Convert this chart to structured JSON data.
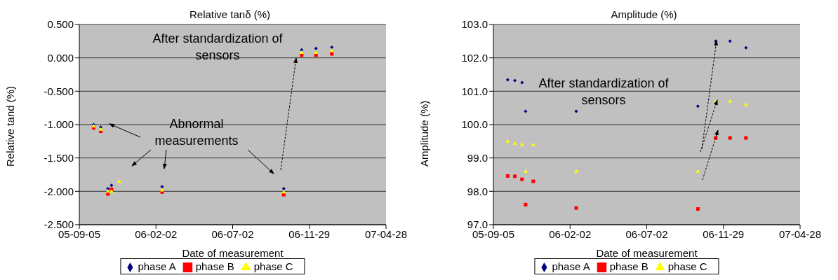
{
  "chart_data": [
    {
      "type": "scatter",
      "title": "Relative tanδ (%)",
      "xlabel": "Date of measurement",
      "ylabel": "Relative tand (%)",
      "x": [
        "2005-10-03",
        "2005-10-17",
        "2005-10-31",
        "2005-11-07",
        "2005-11-22",
        "2006-02-14",
        "2006-10-10",
        "2006-11-14",
        "2006-12-12",
        "2007-01-12"
      ],
      "series": [
        {
          "name": "phase A",
          "color": "#000080",
          "marker": "diamond",
          "values": [
            -1.0,
            -1.04,
            -1.96,
            -1.91,
            null,
            -1.93,
            -1.96,
            0.12,
            0.14,
            0.16
          ]
        },
        {
          "name": "phase B",
          "color": "#ff0000",
          "marker": "square",
          "values": [
            -1.05,
            -1.1,
            -2.04,
            -1.97,
            null,
            -2.01,
            -2.05,
            0.04,
            0.04,
            0.06
          ]
        },
        {
          "name": "phase C",
          "color": "#ffff00",
          "marker": "triangle",
          "values": [
            -1.02,
            -1.07,
            -2.0,
            -2.0,
            -1.85,
            -1.98,
            -2.01,
            0.08,
            0.08,
            0.11
          ]
        }
      ],
      "xlim": [
        "2005-09-05",
        "2007-04-28"
      ],
      "xticks": [
        {
          "value": "2005-09-05",
          "label": "05-09-05"
        },
        {
          "value": "2006-02-02",
          "label": "06-02-02"
        },
        {
          "value": "2006-07-02",
          "label": "06-07-02"
        },
        {
          "value": "2006-11-29",
          "label": "06-11-29"
        },
        {
          "value": "2007-04-28",
          "label": "07-04-28"
        }
      ],
      "ylim": [
        -2.5,
        0.5
      ],
      "yticks": [
        {
          "value": -2.5,
          "label": "-2.500"
        },
        {
          "value": -2.0,
          "label": "-2.000"
        },
        {
          "value": -1.5,
          "label": "-1.500"
        },
        {
          "value": -1.0,
          "label": "-1.000"
        },
        {
          "value": -0.5,
          "label": "-0.500"
        },
        {
          "value": 0.0,
          "label": "0.000"
        },
        {
          "value": 0.5,
          "label": "0.500"
        }
      ],
      "grid": "y",
      "legend": "bottom",
      "annotations": [
        "After standardization of sensors",
        "Abnormal measurements"
      ]
    },
    {
      "type": "scatter",
      "title": "Amplitude (%)",
      "xlabel": "Date of measurement",
      "ylabel": "Amplitude (%)",
      "x": [
        "2005-10-03",
        "2005-10-17",
        "2005-10-31",
        "2005-11-07",
        "2005-11-22",
        "2006-02-14",
        "2006-10-10",
        "2006-11-14",
        "2006-12-12",
        "2007-01-12"
      ],
      "series": [
        {
          "name": "phase A",
          "color": "#000080",
          "marker": "diamond",
          "values": [
            101.34,
            101.32,
            101.26,
            100.4,
            null,
            100.4,
            100.55,
            102.5,
            102.5,
            102.3
          ]
        },
        {
          "name": "phase B",
          "color": "#ff0000",
          "marker": "square",
          "values": [
            98.46,
            98.45,
            98.36,
            97.6,
            98.3,
            97.5,
            97.47,
            99.6,
            99.6,
            99.6
          ]
        },
        {
          "name": "phase C",
          "color": "#ffff00",
          "marker": "triangle",
          "values": [
            99.5,
            99.44,
            99.4,
            98.6,
            99.4,
            98.6,
            98.6,
            100.69,
            100.7,
            100.6
          ]
        }
      ],
      "xlim": [
        "2005-09-05",
        "2007-04-28"
      ],
      "xticks": [
        {
          "value": "2005-09-05",
          "label": "05-09-05"
        },
        {
          "value": "2006-02-02",
          "label": "06-02-02"
        },
        {
          "value": "2006-07-02",
          "label": "06-07-02"
        },
        {
          "value": "2006-11-29",
          "label": "06-11-29"
        },
        {
          "value": "2007-04-28",
          "label": "07-04-28"
        }
      ],
      "ylim": [
        97.0,
        103.0
      ],
      "yticks": [
        {
          "value": 97.0,
          "label": "97.0"
        },
        {
          "value": 98.0,
          "label": "98.0"
        },
        {
          "value": 99.0,
          "label": "99.0"
        },
        {
          "value": 100.0,
          "label": "100.0"
        },
        {
          "value": 101.0,
          "label": "101.0"
        },
        {
          "value": 102.0,
          "label": "102.0"
        },
        {
          "value": 103.0,
          "label": "103.0"
        }
      ],
      "grid": "y",
      "legend": "bottom",
      "annotations": [
        "After standardization of sensors"
      ]
    }
  ]
}
